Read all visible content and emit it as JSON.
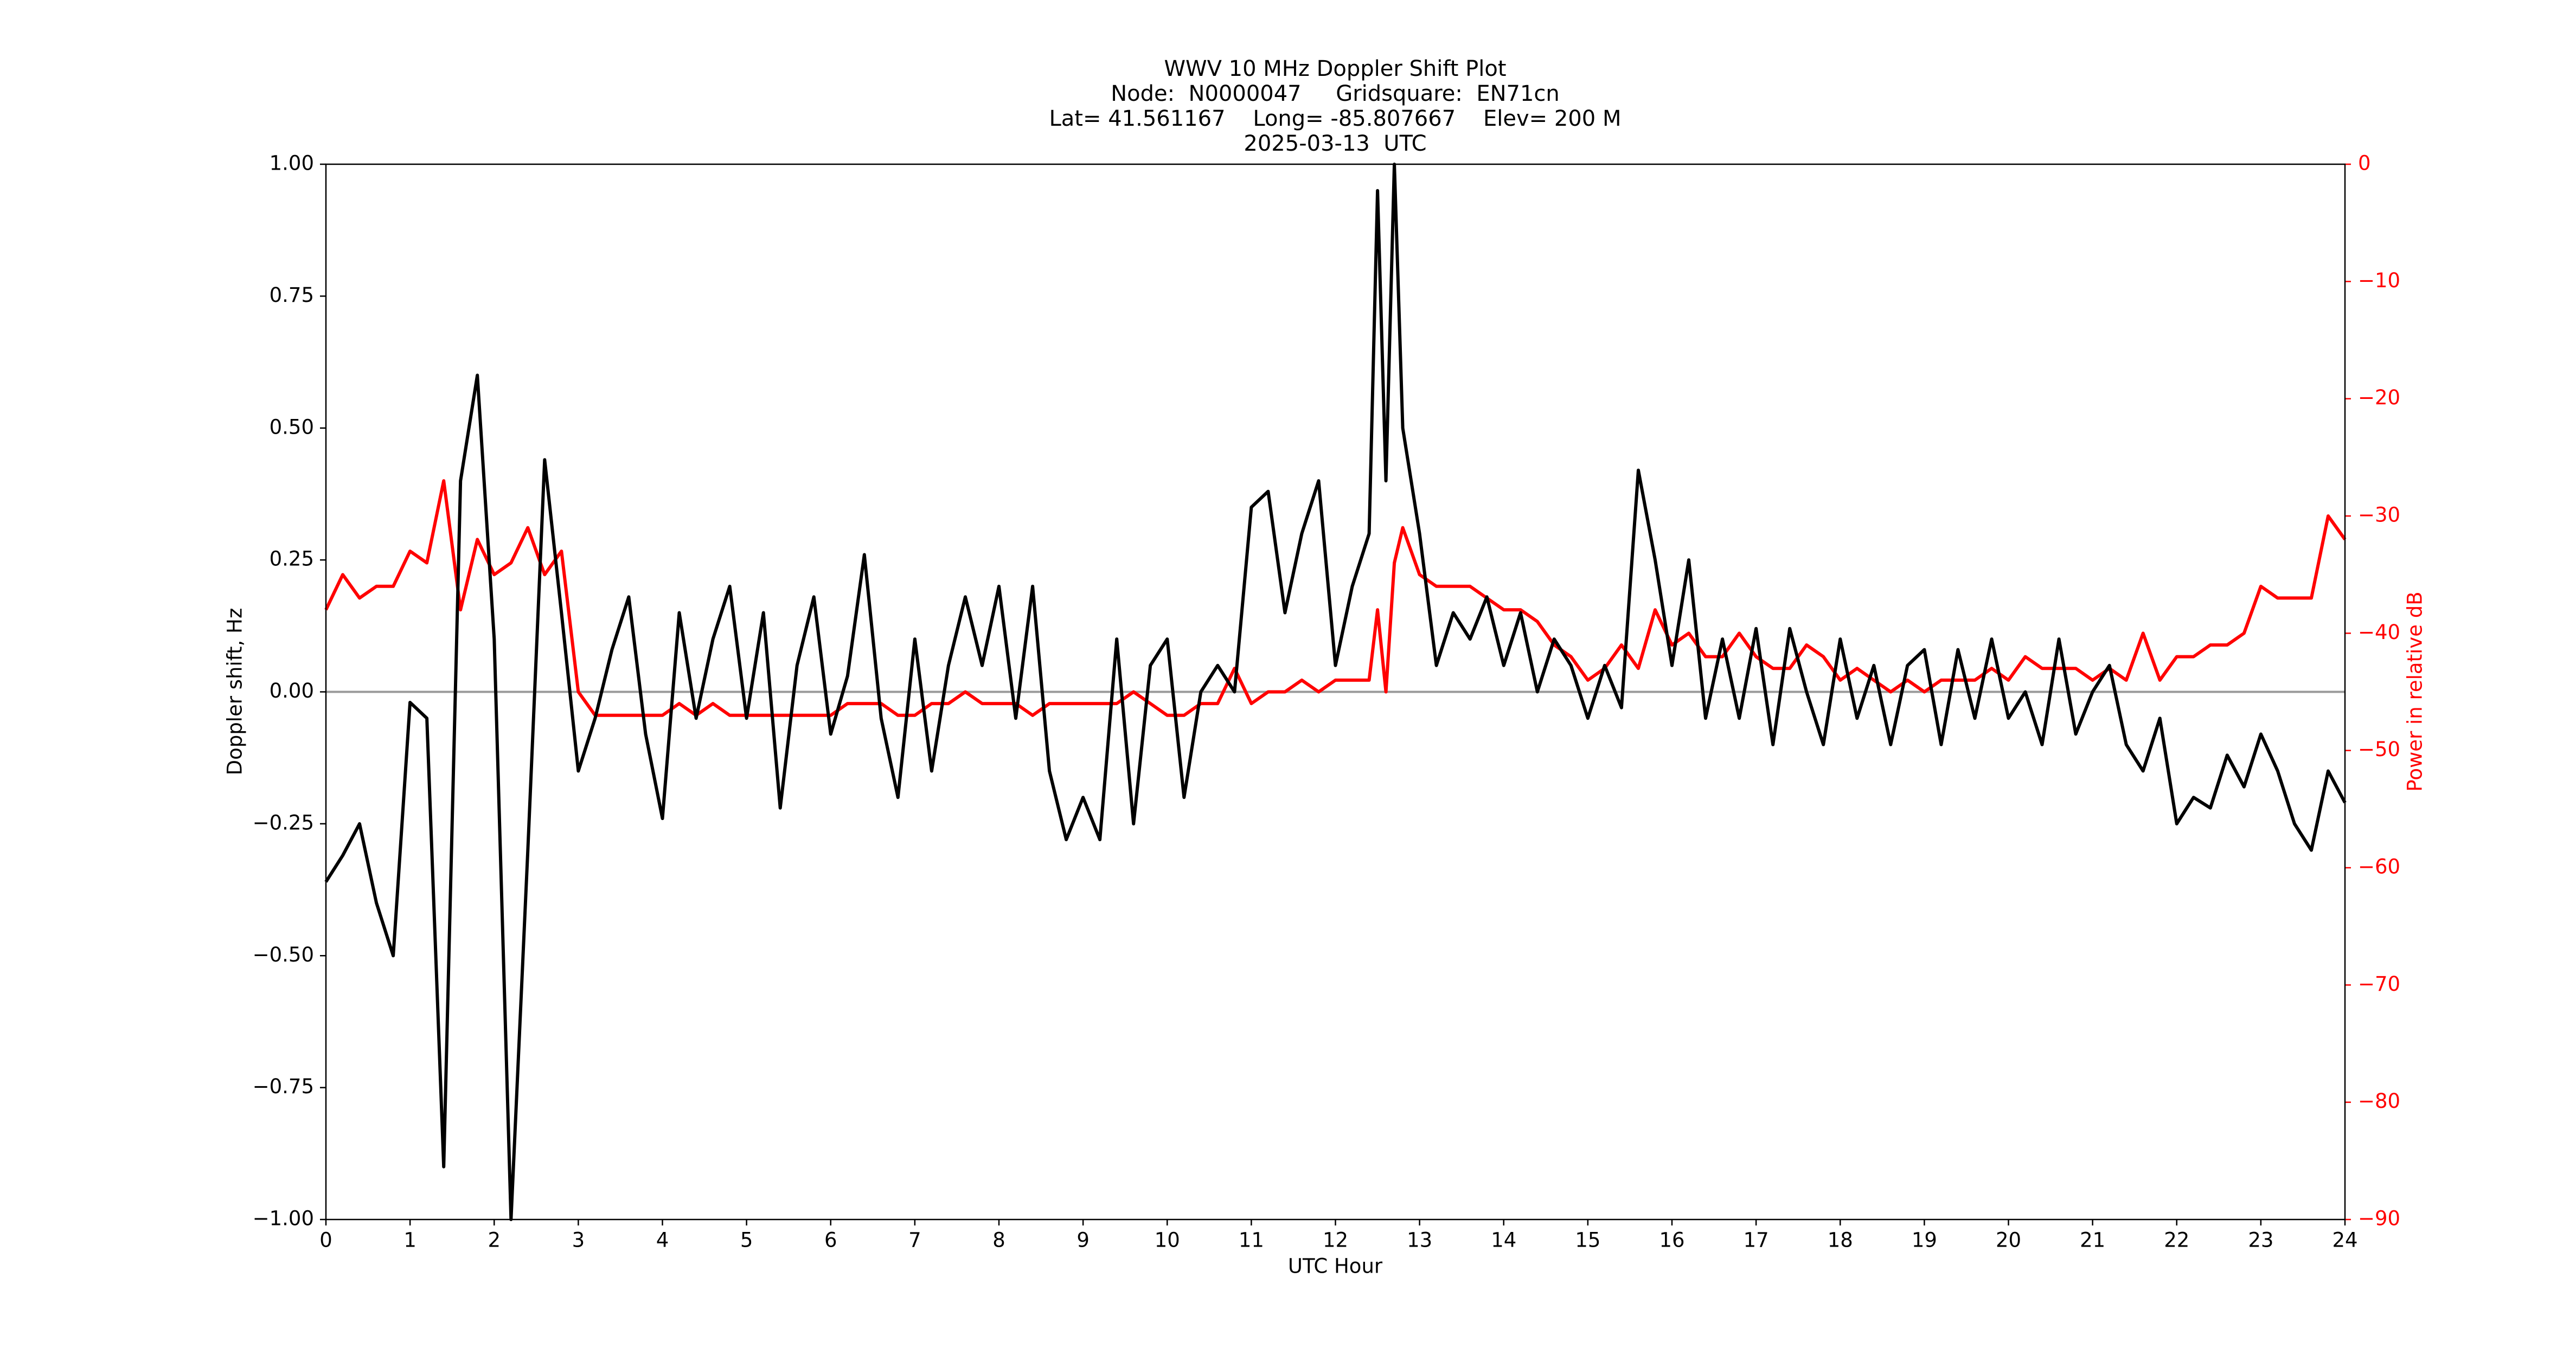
{
  "chart_data": {
    "type": "line",
    "title": [
      "WWV 10 MHz Doppler Shift Plot",
      "Node:  N0000047     Gridsquare:  EN71cn",
      "Lat= 41.561167    Long= -85.807667    Elev= 200 M",
      "2025-03-13  UTC"
    ],
    "xlabel": "UTC Hour",
    "ylabel": "Doppler shift, Hz",
    "y2label": "Power in relative dB",
    "x": [
      0,
      0.2,
      0.4,
      0.6,
      0.8,
      1,
      1.2,
      1.4,
      1.6,
      1.8,
      2,
      2.2,
      2.4,
      2.6,
      2.8,
      3,
      3.2,
      3.4,
      3.6,
      3.8,
      4,
      4.2,
      4.4,
      4.6,
      4.8,
      5,
      5.2,
      5.4,
      5.6,
      5.8,
      6,
      6.2,
      6.4,
      6.6,
      6.8,
      7,
      7.2,
      7.4,
      7.6,
      7.8,
      8,
      8.2,
      8.4,
      8.6,
      8.8,
      9,
      9.2,
      9.4,
      9.6,
      9.8,
      10,
      10.2,
      10.4,
      10.6,
      10.8,
      11,
      11.2,
      11.4,
      11.6,
      11.8,
      12,
      12.2,
      12.4,
      12.5,
      12.6,
      12.7,
      12.8,
      13,
      13.2,
      13.4,
      13.6,
      13.8,
      14,
      14.2,
      14.4,
      14.6,
      14.8,
      15,
      15.2,
      15.4,
      15.6,
      15.8,
      16,
      16.2,
      16.4,
      16.6,
      16.8,
      17,
      17.2,
      17.4,
      17.6,
      17.8,
      18,
      18.2,
      18.4,
      18.6,
      18.8,
      19,
      19.2,
      19.4,
      19.6,
      19.8,
      20,
      20.2,
      20.4,
      20.6,
      20.8,
      21,
      21.2,
      21.4,
      21.6,
      21.8,
      22,
      22.2,
      22.4,
      22.6,
      22.8,
      23,
      23.2,
      23.4,
      23.6,
      23.8,
      24
    ],
    "series": [
      {
        "color": "#000000",
        "values": [
          -0.36,
          -0.31,
          -0.25,
          -0.4,
          -0.5,
          -0.02,
          -0.05,
          -0.9,
          0.4,
          0.6,
          0.1,
          -1.0,
          -0.3,
          0.44,
          0.15,
          -0.15,
          -0.05,
          0.08,
          0.18,
          -0.08,
          -0.24,
          0.15,
          -0.05,
          0.1,
          0.2,
          -0.05,
          0.15,
          -0.22,
          0.05,
          0.18,
          -0.08,
          0.03,
          0.26,
          -0.05,
          -0.2,
          0.1,
          -0.15,
          0.05,
          0.18,
          0.05,
          0.2,
          -0.05,
          0.2,
          -0.15,
          -0.28,
          -0.2,
          -0.28,
          0.1,
          -0.25,
          0.05,
          0.1,
          -0.2,
          0.0,
          0.05,
          0.0,
          0.35,
          0.38,
          0.15,
          0.3,
          0.4,
          0.05,
          0.2,
          0.3,
          0.95,
          0.4,
          1.0,
          0.5,
          0.3,
          0.05,
          0.15,
          0.1,
          0.18,
          0.05,
          0.15,
          0.0,
          0.1,
          0.05,
          -0.05,
          0.05,
          -0.03,
          0.42,
          0.25,
          0.05,
          0.25,
          -0.05,
          0.1,
          -0.05,
          0.12,
          -0.1,
          0.12,
          0.0,
          -0.1,
          0.1,
          -0.05,
          0.05,
          -0.1,
          0.05,
          0.08,
          -0.1,
          0.08,
          -0.05,
          0.1,
          -0.05,
          0.0,
          -0.1,
          0.1,
          -0.08,
          0.0,
          0.05,
          -0.1,
          -0.15,
          -0.05,
          -0.25,
          -0.2,
          -0.22,
          -0.12,
          -0.18,
          -0.08,
          -0.15,
          -0.25,
          -0.3,
          -0.15,
          -0.21
        ]
      },
      {
        "color": "#ff0000",
        "axis": "y2",
        "values": [
          -38,
          -35,
          -37,
          -36,
          -36,
          -33,
          -34,
          -27,
          -38,
          -32,
          -35,
          -34,
          -31,
          -35,
          -33,
          -45,
          -47,
          -47,
          -47,
          -47,
          -47,
          -46,
          -47,
          -46,
          -47,
          -47,
          -47,
          -47,
          -47,
          -47,
          -47,
          -46,
          -46,
          -46,
          -47,
          -47,
          -46,
          -46,
          -45,
          -46,
          -46,
          -46,
          -47,
          -46,
          -46,
          -46,
          -46,
          -46,
          -45,
          -46,
          -47,
          -47,
          -46,
          -46,
          -43,
          -46,
          -45,
          -45,
          -44,
          -45,
          -44,
          -44,
          -44,
          -38,
          -45,
          -34,
          -31,
          -35,
          -36,
          -36,
          -36,
          -37,
          -38,
          -38,
          -39,
          -41,
          -42,
          -44,
          -43,
          -41,
          -43,
          -38,
          -41,
          -40,
          -42,
          -42,
          -40,
          -42,
          -43,
          -43,
          -41,
          -42,
          -44,
          -43,
          -44,
          -45,
          -44,
          -45,
          -44,
          -44,
          -44,
          -43,
          -44,
          -42,
          -43,
          -43,
          -43,
          -44,
          -43,
          -44,
          -40,
          -44,
          -42,
          -42,
          -41,
          -41,
          -40,
          -36,
          -37,
          -37,
          -37,
          -30,
          -32
        ]
      }
    ],
    "xlim": [
      0,
      24
    ],
    "xticks": [
      0,
      1,
      2,
      3,
      4,
      5,
      6,
      7,
      8,
      9,
      10,
      11,
      12,
      13,
      14,
      15,
      16,
      17,
      18,
      19,
      20,
      21,
      22,
      23,
      24
    ],
    "ylim": [
      -1,
      1
    ],
    "yticks": [
      {
        "value": -1,
        "label": "−1.00"
      },
      {
        "value": -0.75,
        "label": "−0.75"
      },
      {
        "value": -0.5,
        "label": "−0.50"
      },
      {
        "value": -0.25,
        "label": "−0.25"
      },
      {
        "value": 0,
        "label": "0.00"
      },
      {
        "value": 0.25,
        "label": "0.25"
      },
      {
        "value": 0.5,
        "label": "0.50"
      },
      {
        "value": 0.75,
        "label": "0.75"
      },
      {
        "value": 1,
        "label": "1.00"
      }
    ],
    "y2lim": [
      -90,
      0
    ],
    "y2ticks": [
      {
        "value": -90,
        "label": "−90"
      },
      {
        "value": -80,
        "label": "−80"
      },
      {
        "value": -70,
        "label": "−70"
      },
      {
        "value": -60,
        "label": "−60"
      },
      {
        "value": -50,
        "label": "−50"
      },
      {
        "value": -40,
        "label": "−40"
      },
      {
        "value": -30,
        "label": "−30"
      },
      {
        "value": -20,
        "label": "−20"
      },
      {
        "value": -10,
        "label": "−10"
      },
      0
    ],
    "y2color": "#ff0000",
    "hline": 0,
    "hline_color": "#999999"
  }
}
